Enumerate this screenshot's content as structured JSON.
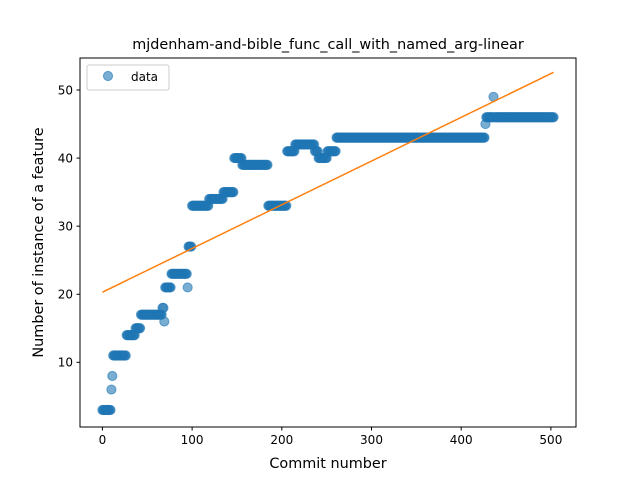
{
  "chart_data": {
    "type": "scatter",
    "title": "mjdenham-and-bible_func_call_with_named_arg-linear",
    "xlabel": "Commit number",
    "ylabel": "Number of instance of a feature",
    "xlim": [
      -25,
      528
    ],
    "ylim": [
      0.5,
      54.7
    ],
    "xticks": [
      0,
      100,
      200,
      300,
      400,
      500
    ],
    "yticks": [
      10,
      20,
      30,
      40,
      50
    ],
    "grid": false,
    "legend": {
      "placement": "top-left",
      "entries": [
        "data"
      ]
    },
    "colors": {
      "data": "#1f77b4",
      "fit": "#ff7f0e"
    },
    "segments": [
      {
        "x0": 0,
        "x1": 9,
        "y": 3
      },
      {
        "x0": 10,
        "x1": 10,
        "y": 6
      },
      {
        "x0": 11,
        "x1": 11,
        "y": 8
      },
      {
        "x0": 12,
        "x1": 26,
        "y": 11
      },
      {
        "x0": 27,
        "x1": 36,
        "y": 14
      },
      {
        "x0": 37,
        "x1": 42,
        "y": 15
      },
      {
        "x0": 43,
        "x1": 66,
        "y": 17
      },
      {
        "x0": 67,
        "x1": 68,
        "y": 18
      },
      {
        "x0": 69,
        "x1": 69,
        "y": 16
      },
      {
        "x0": 70,
        "x1": 76,
        "y": 21
      },
      {
        "x0": 77,
        "x1": 94,
        "y": 23
      },
      {
        "x0": 95,
        "x1": 95,
        "y": 21
      },
      {
        "x0": 96,
        "x1": 99,
        "y": 27
      },
      {
        "x0": 100,
        "x1": 118,
        "y": 33
      },
      {
        "x0": 119,
        "x1": 134,
        "y": 34
      },
      {
        "x0": 135,
        "x1": 146,
        "y": 35
      },
      {
        "x0": 147,
        "x1": 155,
        "y": 40
      },
      {
        "x0": 156,
        "x1": 184,
        "y": 39
      },
      {
        "x0": 185,
        "x1": 205,
        "y": 33
      },
      {
        "x0": 206,
        "x1": 214,
        "y": 41
      },
      {
        "x0": 215,
        "x1": 236,
        "y": 42
      },
      {
        "x0": 237,
        "x1": 240,
        "y": 41
      },
      {
        "x0": 241,
        "x1": 250,
        "y": 40
      },
      {
        "x0": 251,
        "x1": 260,
        "y": 41
      },
      {
        "x0": 261,
        "x1": 426,
        "y": 43
      },
      {
        "x0": 427,
        "x1": 427,
        "y": 45
      },
      {
        "x0": 428,
        "x1": 435,
        "y": 46
      },
      {
        "x0": 436,
        "x1": 436,
        "y": 49
      },
      {
        "x0": 437,
        "x1": 503,
        "y": 46
      }
    ],
    "fit_line": {
      "x": [
        0,
        503
      ],
      "y": [
        20.3,
        52.6
      ]
    }
  }
}
